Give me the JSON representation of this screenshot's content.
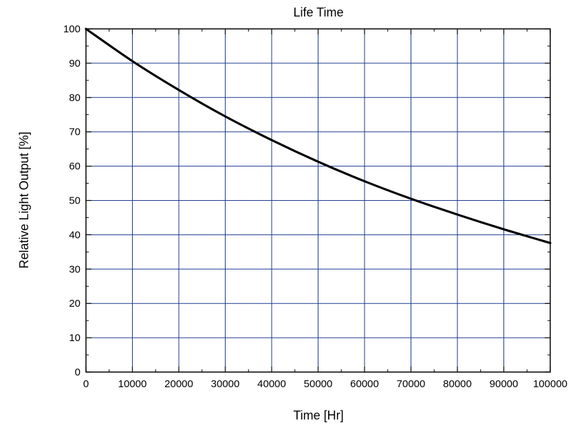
{
  "chart_data": {
    "type": "line",
    "title": "Life Time",
    "xlabel": "Time [Hr]",
    "ylabel": "Relative Light Output [%]",
    "xlim": [
      0,
      100000
    ],
    "ylim": [
      0,
      100
    ],
    "xticks": [
      0,
      10000,
      20000,
      30000,
      40000,
      50000,
      60000,
      70000,
      80000,
      90000,
      100000
    ],
    "yticks": [
      0,
      10,
      20,
      30,
      40,
      50,
      60,
      70,
      80,
      90,
      100
    ],
    "xtick_labels": [
      "0",
      "10000",
      "20000",
      "30000",
      "40000",
      "50000",
      "60000",
      "70000",
      "80000",
      "90000",
      "100000"
    ],
    "ytick_labels": [
      "0",
      "10",
      "20",
      "30",
      "40",
      "50",
      "60",
      "70",
      "80",
      "90",
      "100"
    ],
    "grid": true,
    "grid_color": "#1a3a8c",
    "line_color": "#000000",
    "series": [
      {
        "x": [
          0,
          10000,
          20000,
          30000,
          40000,
          50000,
          60000,
          70000,
          80000,
          90000,
          100000
        ],
        "y": [
          100,
          90.6,
          82.2,
          74.5,
          67.6,
          61.3,
          55.6,
          50.5,
          45.9,
          41.6,
          37.6
        ]
      }
    ]
  }
}
